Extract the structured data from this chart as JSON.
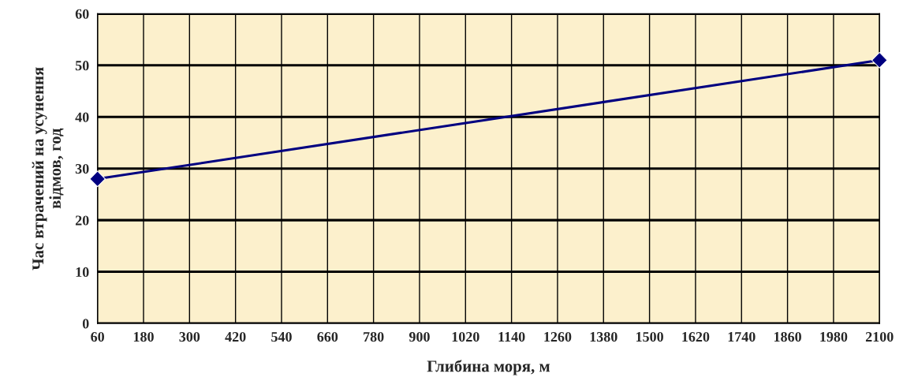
{
  "chart_data": {
    "type": "line",
    "xlabel": "Глибина моря, м",
    "ylabel": "Час втрачений на усунення відмов, год",
    "x": [
      60,
      2100
    ],
    "series": [
      {
        "color": "#000080",
        "values": [
          28,
          51
        ]
      }
    ],
    "xlim": [
      60,
      2100
    ],
    "xticks": [
      60,
      180,
      300,
      420,
      540,
      660,
      780,
      900,
      1020,
      1140,
      1260,
      1380,
      1500,
      1620,
      1740,
      1860,
      1980,
      2100
    ],
    "ylim": [
      0,
      60
    ],
    "yticks": [
      0,
      10,
      20,
      30,
      40,
      50,
      60
    ],
    "grid": true,
    "marker": "diamond",
    "line_style": "solid"
  }
}
